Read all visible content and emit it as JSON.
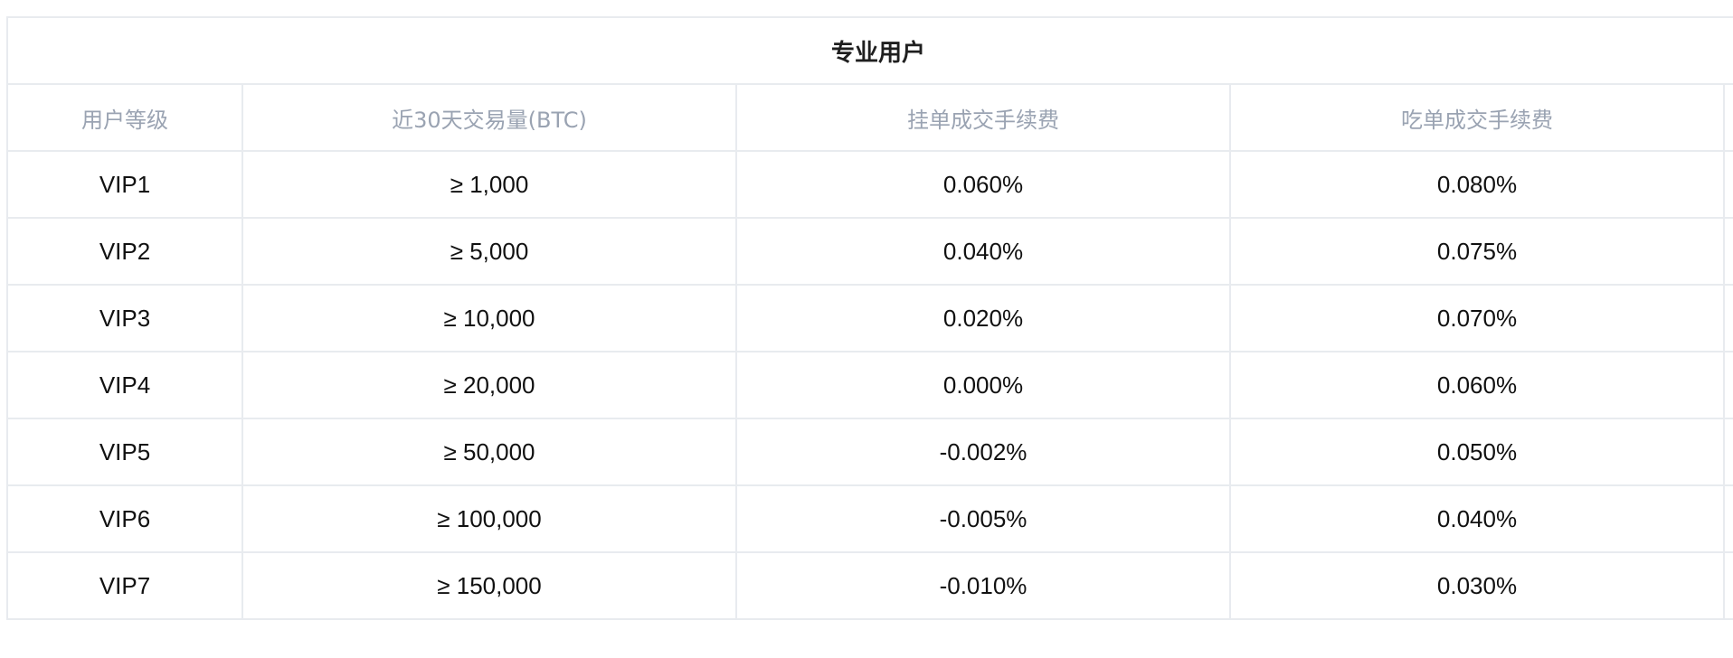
{
  "table": {
    "title": "专业用户",
    "headers": [
      "用户等级",
      "近30天交易量(BTC)",
      "挂单成交手续费",
      "吃单成交手续费"
    ],
    "rows": [
      {
        "level": "VIP1",
        "volume": "≥ 1,000",
        "maker": "0.060%",
        "taker": "0.080%"
      },
      {
        "level": "VIP2",
        "volume": "≥ 5,000",
        "maker": "0.040%",
        "taker": "0.075%"
      },
      {
        "level": "VIP3",
        "volume": "≥ 10,000",
        "maker": "0.020%",
        "taker": "0.070%"
      },
      {
        "level": "VIP4",
        "volume": "≥ 20,000",
        "maker": "0.000%",
        "taker": "0.060%"
      },
      {
        "level": "VIP5",
        "volume": "≥ 50,000",
        "maker": "-0.002%",
        "taker": "0.050%"
      },
      {
        "level": "VIP6",
        "volume": "≥ 100,000",
        "maker": "-0.005%",
        "taker": "0.040%"
      },
      {
        "level": "VIP7",
        "volume": "≥ 150,000",
        "maker": "-0.010%",
        "taker": "0.030%"
      }
    ]
  },
  "colors": {
    "border": "#e8ebef",
    "header_text": "#9aa3b2",
    "title_text": "#1f1f1f",
    "cell_text": "#111111"
  }
}
